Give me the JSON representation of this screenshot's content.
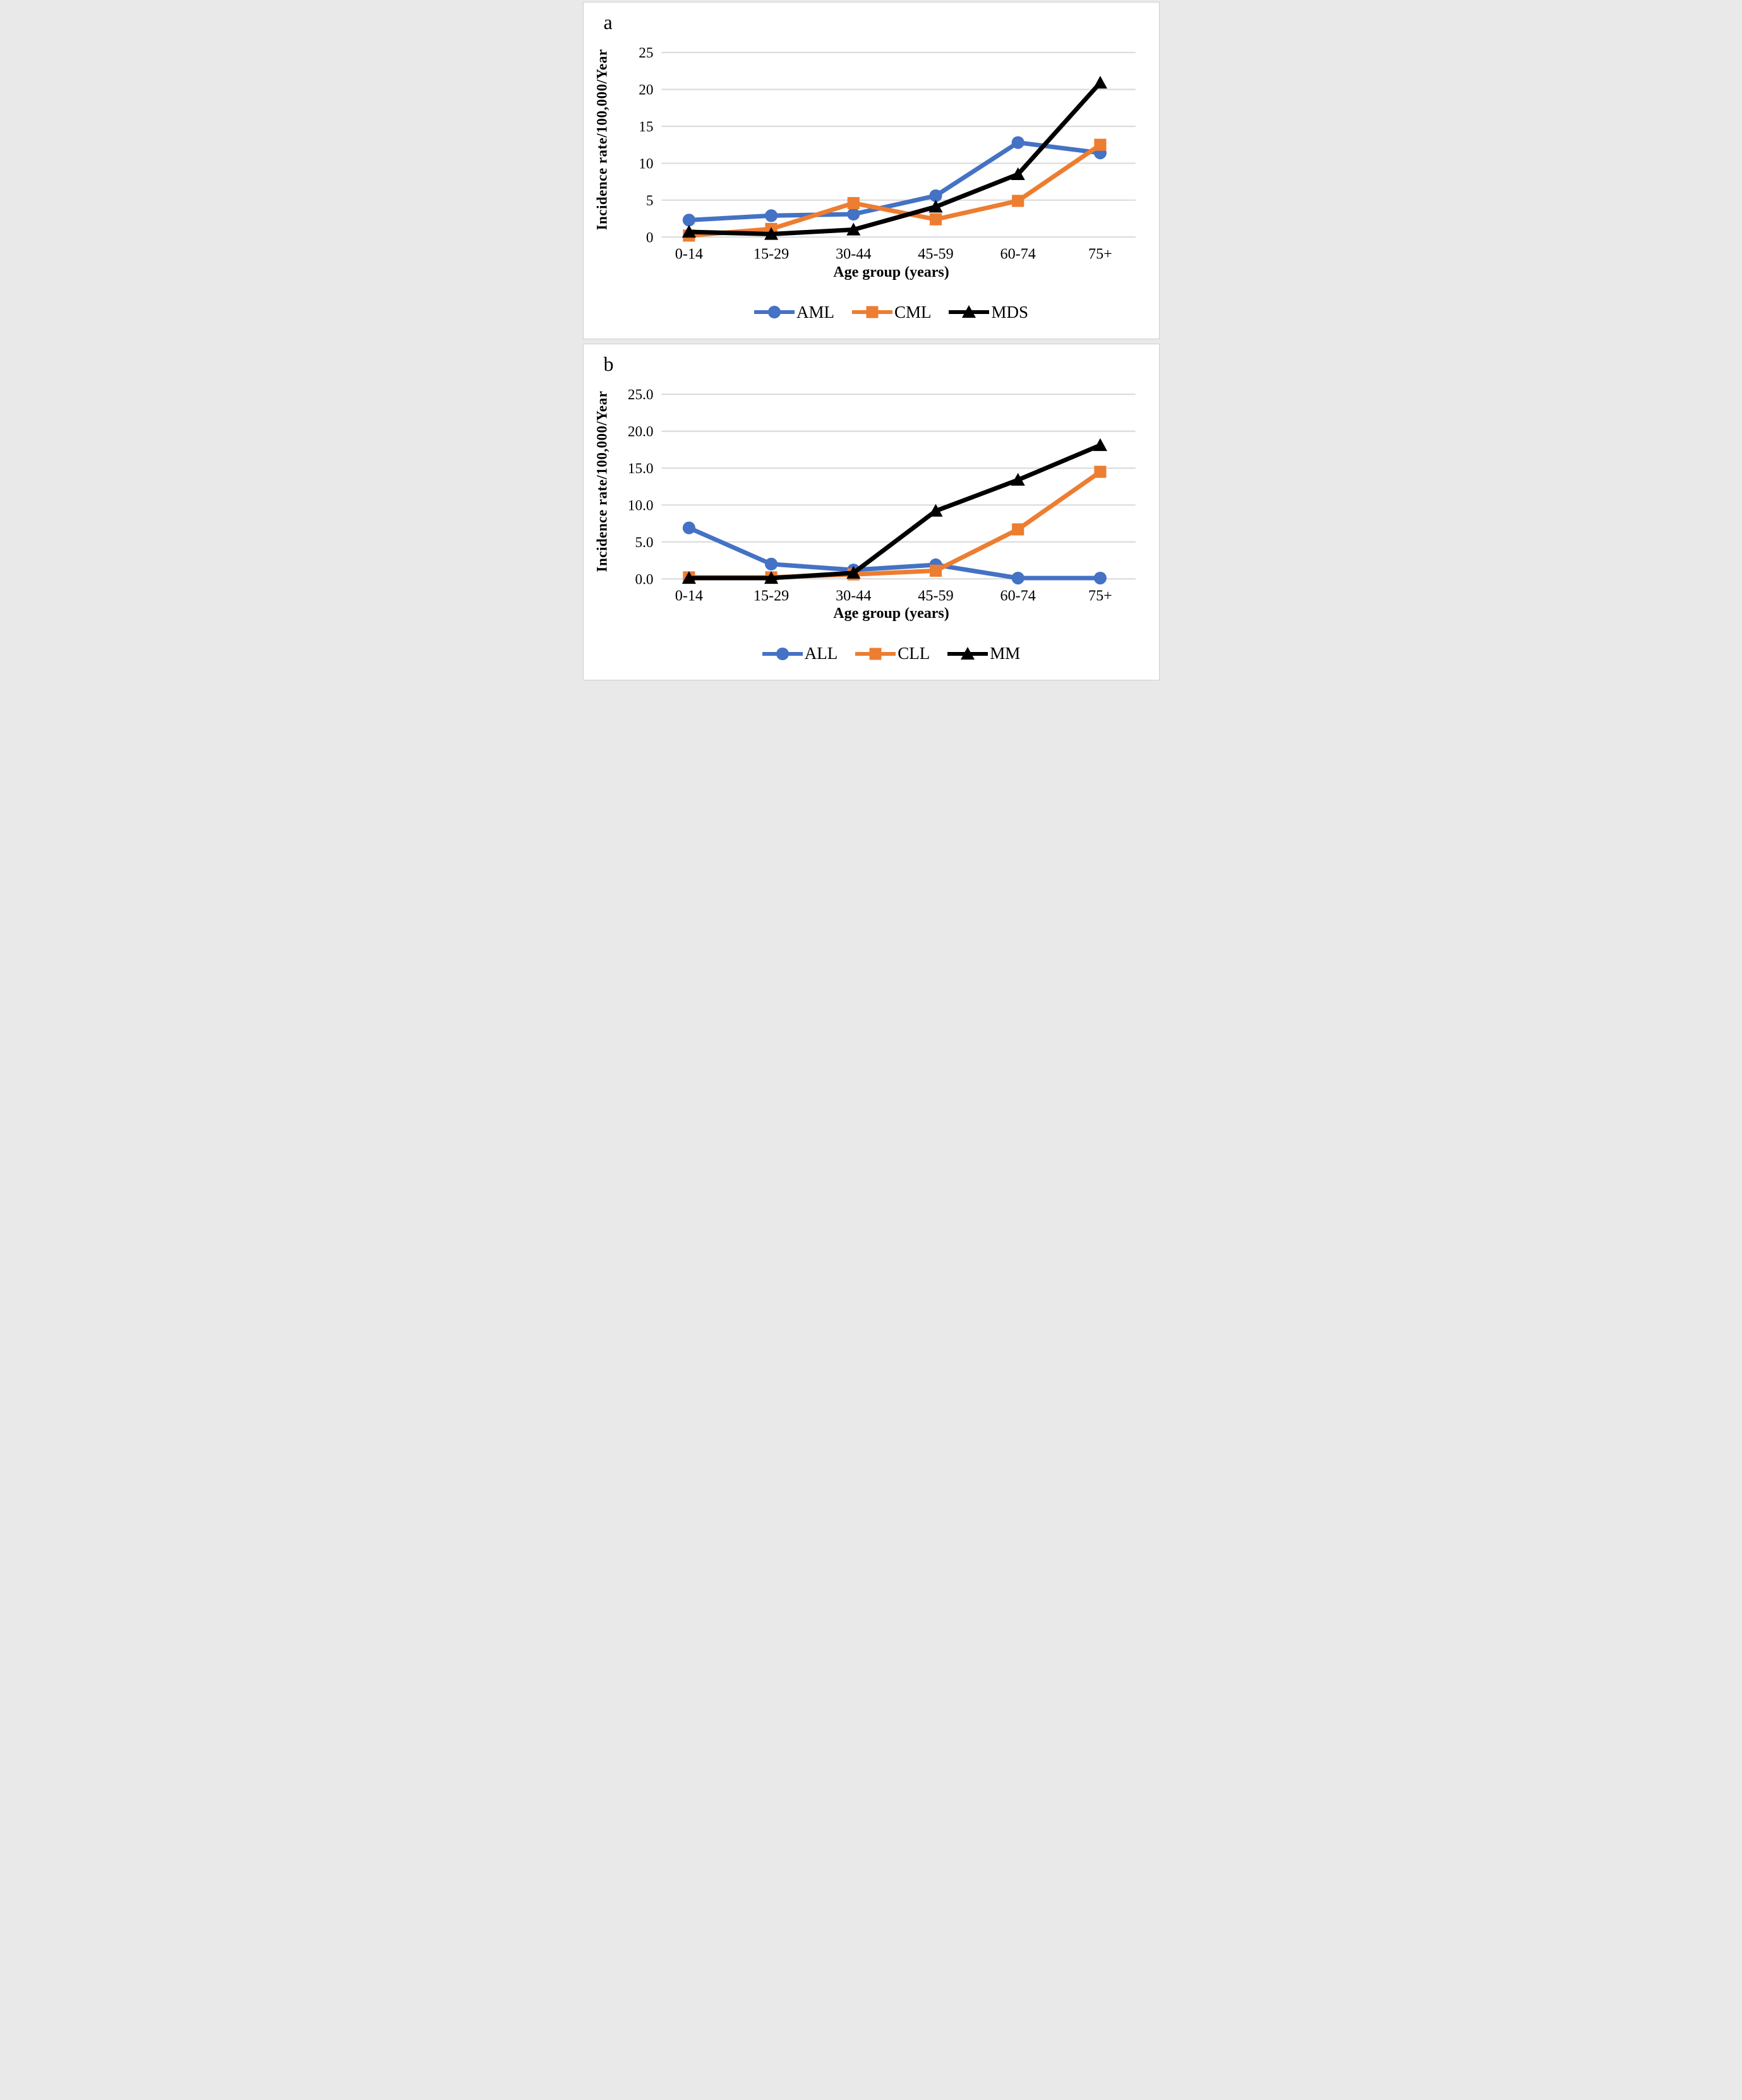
{
  "panels": [
    {
      "label": "a"
    },
    {
      "label": "b"
    }
  ],
  "chart_data": [
    {
      "type": "line",
      "panel_label": "a",
      "categories": [
        "0-14",
        "15-29",
        "30-44",
        "45-59",
        "60-74",
        "75+"
      ],
      "x_axis_title": "Age group (years)",
      "y_axis_title": "Incidence rate/100,000/Year",
      "y_ticks": [
        "0",
        "5",
        "10",
        "15",
        "20",
        "25"
      ],
      "ylim": [
        0,
        25
      ],
      "grid": true,
      "gridline_color": "#D9D9D9",
      "legend_position": "bottom",
      "series": [
        {
          "name": "AML",
          "color": "#4472C4",
          "marker": "circle",
          "values": [
            2.3,
            2.9,
            3.1,
            5.6,
            12.8,
            11.4
          ]
        },
        {
          "name": "CML",
          "color": "#ED7D31",
          "marker": "square",
          "values": [
            0.2,
            1.1,
            4.6,
            2.4,
            4.9,
            12.5
          ]
        },
        {
          "name": "MDS",
          "color": "#000000",
          "marker": "triangle",
          "values": [
            0.7,
            0.4,
            1.0,
            4.1,
            8.5,
            20.9
          ]
        }
      ]
    },
    {
      "type": "line",
      "panel_label": "b",
      "categories": [
        "0-14",
        "15-29",
        "30-44",
        "45-59",
        "60-74",
        "75+"
      ],
      "x_axis_title": "Age group (years)",
      "y_axis_title": "Incidence rate/100,000/Year",
      "y_ticks": [
        "0.0",
        "5.0",
        "10.0",
        "15.0",
        "20.0",
        "25.0"
      ],
      "ylim": [
        0,
        25
      ],
      "grid": true,
      "gridline_color": "#D9D9D9",
      "legend_position": "bottom",
      "series": [
        {
          "name": "ALL",
          "color": "#4472C4",
          "marker": "circle",
          "values": [
            6.9,
            2.0,
            1.2,
            1.9,
            0.1,
            0.1
          ]
        },
        {
          "name": "CLL",
          "color": "#ED7D31",
          "marker": "square",
          "values": [
            0.2,
            0.2,
            0.6,
            1.1,
            6.7,
            14.5
          ]
        },
        {
          "name": "MM",
          "color": "#000000",
          "marker": "triangle",
          "values": [
            0.1,
            0.1,
            0.8,
            9.2,
            13.4,
            18.1
          ]
        }
      ]
    }
  ]
}
